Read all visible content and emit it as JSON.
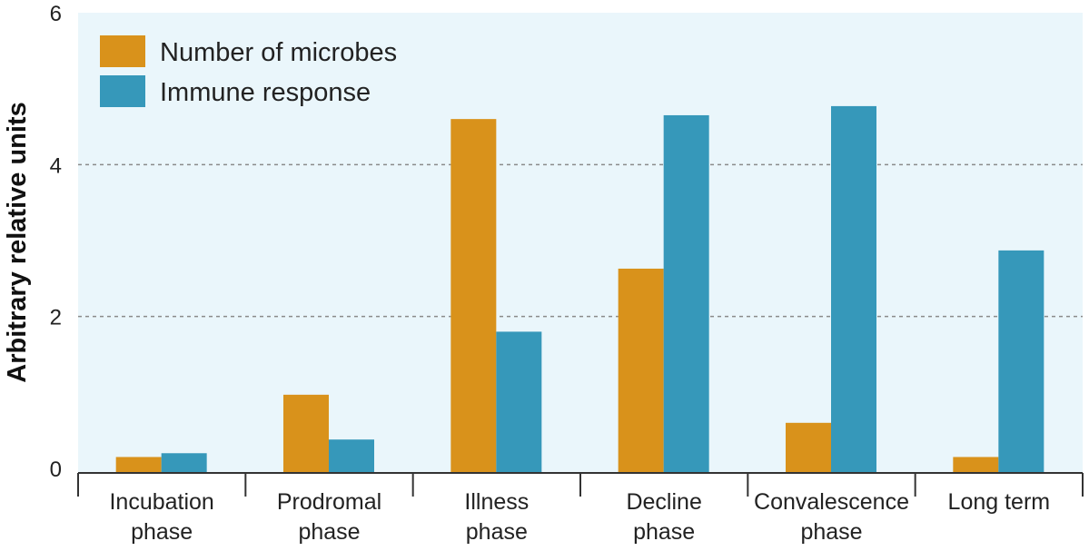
{
  "chart_data": {
    "type": "bar",
    "categories": [
      [
        "Incubation",
        "phase"
      ],
      [
        "Prodromal",
        "phase"
      ],
      [
        "Illness",
        "phase"
      ],
      [
        "Decline",
        "phase"
      ],
      [
        "Convalescence",
        "phase"
      ],
      [
        "Long term"
      ]
    ],
    "series": [
      {
        "name": "Number of microbes",
        "color": "#d9921b",
        "values": [
          0.15,
          0.97,
          4.6,
          2.63,
          0.6,
          0.15
        ]
      },
      {
        "name": "Immune response",
        "color": "#3698ba",
        "values": [
          0.2,
          0.38,
          1.8,
          4.65,
          4.77,
          2.87
        ]
      }
    ],
    "ylabel": "Arbitrary relative units",
    "ylim": [
      0,
      6
    ],
    "yticks": [
      0,
      2,
      4,
      6
    ],
    "gridlines": [
      2,
      4
    ],
    "legend_position": "top-left",
    "plot_background": "#eaf6fb"
  }
}
